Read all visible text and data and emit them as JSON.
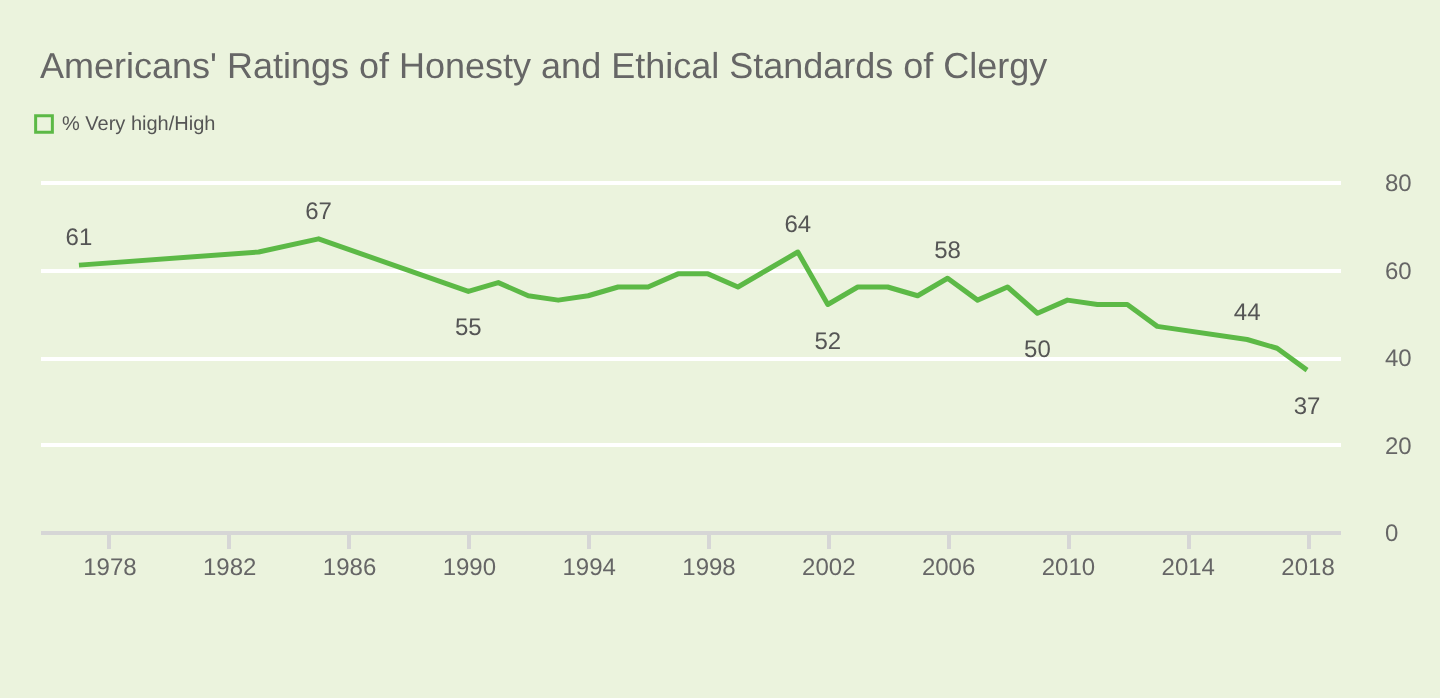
{
  "chart_data": {
    "type": "line",
    "title": "Americans' Ratings of Honesty and Ethical Standards of Clergy",
    "x": [
      1977,
      1983,
      1985,
      1990,
      1991,
      1992,
      1993,
      1994,
      1995,
      1996,
      1997,
      1998,
      1999,
      2000,
      2001,
      2002,
      2003,
      2004,
      2005,
      2006,
      2007,
      2008,
      2009,
      2010,
      2011,
      2012,
      2013,
      2016,
      2017,
      2018
    ],
    "series": [
      {
        "name": "% Very high/High",
        "color": "#5cb946",
        "values": [
          61,
          64,
          67,
          55,
          57,
          54,
          53,
          54,
          56,
          56,
          59,
          59,
          56,
          60,
          64,
          52,
          56,
          56,
          54,
          58,
          53,
          56,
          50,
          53,
          52,
          52,
          47,
          44,
          42,
          37
        ],
        "value_labels": [
          "61",
          null,
          "67",
          "55",
          null,
          null,
          null,
          null,
          null,
          null,
          null,
          null,
          null,
          null,
          "64",
          "52",
          null,
          null,
          null,
          "58",
          null,
          null,
          "50",
          null,
          null,
          null,
          null,
          "44",
          null,
          "37"
        ]
      }
    ],
    "xlim": [
      1975.7,
      2019.1
    ],
    "xticks": [
      1978,
      1982,
      1986,
      1990,
      1994,
      1998,
      2002,
      2006,
      2010,
      2014,
      2018
    ],
    "ylim": [
      0,
      80
    ],
    "yticks": [
      0,
      20,
      40,
      60,
      80
    ],
    "grid": "y",
    "legend": "top left",
    "marker": "none",
    "line_style": "solid"
  }
}
